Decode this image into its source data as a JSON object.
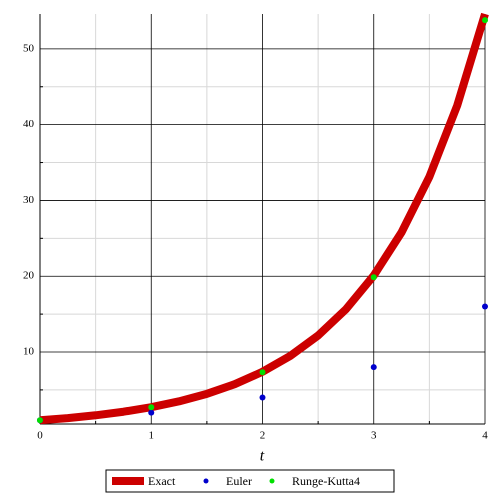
{
  "chart_data": {
    "type": "line",
    "x_label": "t",
    "xlim": [
      0,
      4
    ],
    "ylim": [
      0.5,
      54.6
    ],
    "xticks": [
      0,
      1,
      2,
      3,
      4
    ],
    "yticks": [
      10,
      20,
      30,
      40,
      50
    ],
    "xminorticks": [
      0.5,
      1.5,
      2.5,
      3.5
    ],
    "yminorticks": [
      5,
      15,
      25,
      35,
      45
    ],
    "grid": true,
    "legend": "bottom",
    "series": [
      {
        "name": "Exact",
        "color": "#cc0000",
        "style": "line",
        "x": [
          0,
          0.25,
          0.5,
          0.75,
          1,
          1.25,
          1.5,
          1.75,
          2,
          2.25,
          2.5,
          2.75,
          3,
          3.25,
          3.5,
          3.75,
          4
        ],
        "values": [
          1,
          1.28,
          1.65,
          2.12,
          2.72,
          3.49,
          4.48,
          5.75,
          7.39,
          9.49,
          12.18,
          15.64,
          20.09,
          25.79,
          33.12,
          42.52,
          54.6
        ]
      },
      {
        "name": "Euler",
        "color": "#0000cc",
        "style": "point",
        "x": [
          0,
          1,
          2,
          3,
          4
        ],
        "values": [
          1,
          2,
          4,
          8,
          16
        ]
      },
      {
        "name": "Runge-Kutta4",
        "color": "#00e000",
        "style": "point",
        "x": [
          0,
          1,
          2,
          3,
          4
        ],
        "values": [
          1,
          2.71,
          7.33,
          19.86,
          53.79
        ]
      }
    ]
  }
}
